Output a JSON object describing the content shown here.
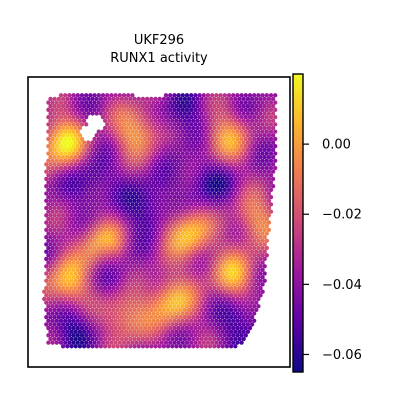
{
  "chart_data": {
    "type": "scatter",
    "title": "UKF296",
    "subtitle": "RUNX1 activity",
    "colormap": "plasma",
    "colormap_stops": [
      "#0d0887",
      "#5c01a6",
      "#9c179e",
      "#cc4778",
      "#ed7953",
      "#fdb42f",
      "#f0f921"
    ],
    "colorbar": {
      "range": [
        -0.065,
        0.02
      ],
      "ticks": [
        0.0,
        -0.02,
        -0.04,
        -0.06
      ],
      "tick_labels": [
        "0.00",
        "−0.02",
        "−0.04",
        "−0.06"
      ]
    },
    "hotspots": [
      {
        "x": 0.08,
        "y": 0.2,
        "value": 0.018
      },
      {
        "x": 0.25,
        "y": 0.6,
        "value": 0.005
      },
      {
        "x": 0.62,
        "y": 0.55,
        "value": 0.01
      },
      {
        "x": 0.82,
        "y": 0.72,
        "value": 0.004
      },
      {
        "x": 0.55,
        "y": 0.82,
        "value": 0.008
      },
      {
        "x": 0.4,
        "y": 0.15,
        "value": 0.002
      },
      {
        "x": 0.78,
        "y": 0.18,
        "value": 0.0
      },
      {
        "x": 0.1,
        "y": 0.75,
        "value": 0.006
      },
      {
        "x": 0.92,
        "y": 0.5,
        "value": -0.005
      },
      {
        "x": 0.35,
        "y": 0.88,
        "value": -0.002
      }
    ],
    "coldspots": [
      {
        "x": 0.45,
        "y": 0.45,
        "value": -0.062
      },
      {
        "x": 0.2,
        "y": 0.35,
        "value": -0.058
      },
      {
        "x": 0.7,
        "y": 0.35,
        "value": -0.06
      },
      {
        "x": 0.3,
        "y": 0.7,
        "value": -0.055
      },
      {
        "x": 0.85,
        "y": 0.88,
        "value": -0.06
      },
      {
        "x": 0.6,
        "y": 0.1,
        "value": -0.058
      },
      {
        "x": 0.12,
        "y": 0.92,
        "value": -0.06
      }
    ]
  }
}
